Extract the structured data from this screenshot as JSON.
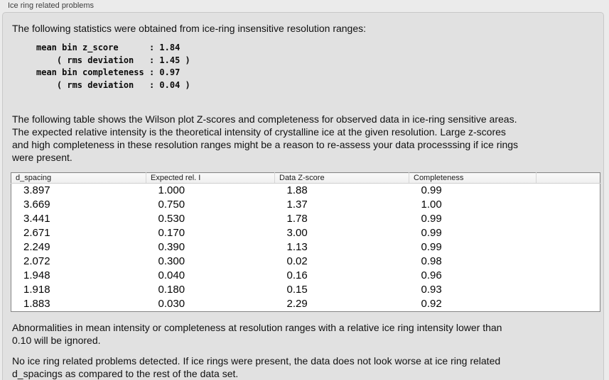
{
  "group": {
    "title": "Ice ring related problems"
  },
  "colors": {
    "window_bg": "#ebebeb",
    "panel_bg": "#e1e1e1",
    "panel_border": "#c8c8c8",
    "table_bg": "#ffffff",
    "table_border": "#858585",
    "header_bg": "#f4f4f4",
    "text": "#111111"
  },
  "stats": {
    "intro": "The following statistics were obtained from ice-ring insensitive resolution ranges:",
    "block": "mean bin z_score      : 1.84\n    ( rms deviation   : 1.45 )\nmean bin completeness : 0.97\n    ( rms deviation   : 0.04 )"
  },
  "table_description": "The following table shows the Wilson plot Z-scores and completeness for observed data in ice-ring sensitive areas.\nThe expected relative intensity is the theoretical intensity of crystalline ice at the given resolution. Large z-scores\nand high completeness in these resolution ranges might be a reason to re-assess your data processsing if ice rings\nwere present.",
  "table": {
    "columns": [
      "d_spacing",
      "Expected rel. I",
      "Data Z-score",
      "Completeness"
    ],
    "rows": [
      [
        "3.897",
        "1.000",
        "1.88",
        "0.99"
      ],
      [
        "3.669",
        "0.750",
        "1.37",
        "1.00"
      ],
      [
        "3.441",
        "0.530",
        "1.78",
        "0.99"
      ],
      [
        "2.671",
        "0.170",
        "3.00",
        "0.99"
      ],
      [
        "2.249",
        "0.390",
        "1.13",
        "0.99"
      ],
      [
        "2.072",
        "0.300",
        "0.02",
        "0.98"
      ],
      [
        "1.948",
        "0.040",
        "0.16",
        "0.96"
      ],
      [
        "1.918",
        "0.180",
        "0.15",
        "0.93"
      ],
      [
        "1.883",
        "0.030",
        "2.29",
        "0.92"
      ]
    ]
  },
  "notes": {
    "ignore_rule": "Abnormalities in mean intensity or completeness at resolution ranges with a relative ice ring intensity lower than\n0.10 will be ignored.",
    "conclusion": "No ice ring related problems detected. If ice rings were present, the data does not look worse at ice ring related\nd_spacings as compared to the rest of the data set."
  }
}
